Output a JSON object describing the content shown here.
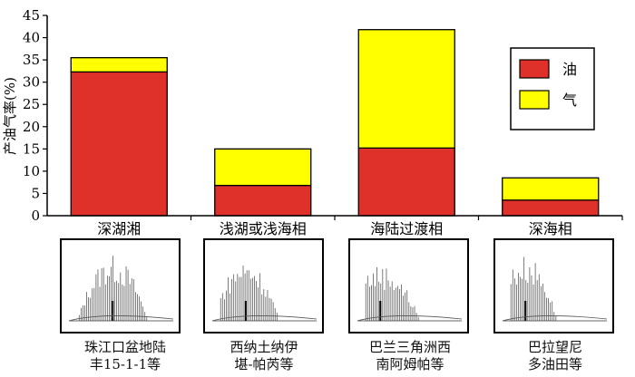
{
  "chart_data": {
    "type": "bar",
    "stacked": true,
    "ylabel": "产油气率(%)",
    "ylim": [
      0,
      45
    ],
    "yticks": [
      0,
      5,
      10,
      15,
      20,
      25,
      30,
      35,
      40,
      45
    ],
    "categories": [
      "深湖湘",
      "浅湖或浅海相",
      "海陆过渡相",
      "深海相"
    ],
    "series": [
      {
        "name": "油",
        "color": "#e0302a",
        "values": [
          32.3,
          6.8,
          15.2,
          3.5
        ]
      },
      {
        "name": "气",
        "color": "#ffff00",
        "values": [
          3.2,
          8.2,
          26.6,
          5.0
        ]
      }
    ],
    "legend_position": "top-right",
    "grid": false
  },
  "captions": [
    {
      "line1": "珠江口盆地陆",
      "line2": "丰15-1-1等"
    },
    {
      "line1": "西纳土纳伊",
      "line2": "堪-帕芮等"
    },
    {
      "line1": "巴兰三角洲西",
      "line2": "南阿姆帕等"
    },
    {
      "line1": "巴拉望尼",
      "line2": "多油田等"
    }
  ]
}
